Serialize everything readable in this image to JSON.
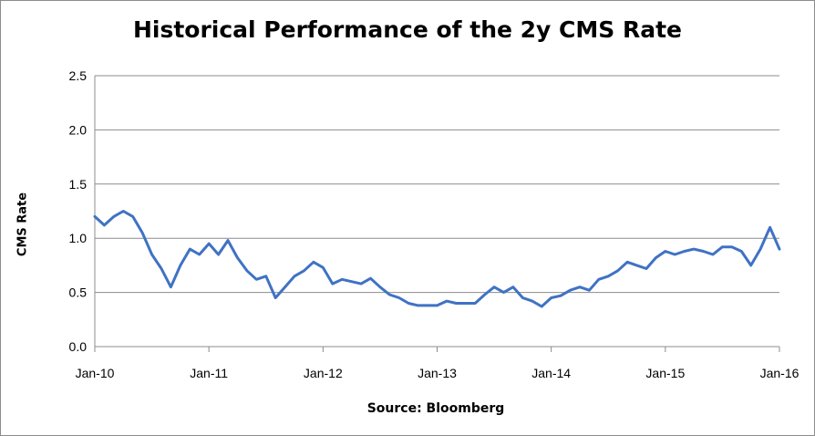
{
  "chart_data": {
    "type": "line",
    "title": "Historical Performance of the 2y CMS Rate",
    "xlabel": "Source: Bloomberg",
    "ylabel": "CMS Rate",
    "ylim": [
      0,
      2.5
    ],
    "yticks": [
      "0.0",
      "0.5",
      "1.0",
      "1.5",
      "2.0",
      "2.5"
    ],
    "xlim": [
      "2010-01",
      "2016-01"
    ],
    "xticks": [
      "Jan-10",
      "Jan-11",
      "Jan-12",
      "Jan-13",
      "Jan-14",
      "Jan-15",
      "Jan-16"
    ],
    "grid": true,
    "legend": "none",
    "series": [
      {
        "color": "#3f72c4",
        "x": [
          "2010-01",
          "2010-02",
          "2010-03",
          "2010-04",
          "2010-05",
          "2010-06",
          "2010-07",
          "2010-08",
          "2010-09",
          "2010-10",
          "2010-11",
          "2010-12",
          "2011-01",
          "2011-02",
          "2011-03",
          "2011-04",
          "2011-05",
          "2011-06",
          "2011-07",
          "2011-08",
          "2011-09",
          "2011-10",
          "2011-11",
          "2011-12",
          "2012-01",
          "2012-02",
          "2012-03",
          "2012-04",
          "2012-05",
          "2012-06",
          "2012-07",
          "2012-08",
          "2012-09",
          "2012-10",
          "2012-11",
          "2012-12",
          "2013-01",
          "2013-02",
          "2013-03",
          "2013-04",
          "2013-05",
          "2013-06",
          "2013-07",
          "2013-08",
          "2013-09",
          "2013-10",
          "2013-11",
          "2013-12",
          "2014-01",
          "2014-02",
          "2014-03",
          "2014-04",
          "2014-05",
          "2014-06",
          "2014-07",
          "2014-08",
          "2014-09",
          "2014-10",
          "2014-11",
          "2014-12",
          "2015-01",
          "2015-02",
          "2015-03",
          "2015-04",
          "2015-05",
          "2015-06",
          "2015-07",
          "2015-08",
          "2015-09",
          "2015-10",
          "2015-11",
          "2015-12",
          "2016-01"
        ],
        "values": [
          1.2,
          1.12,
          1.2,
          1.25,
          1.2,
          1.05,
          0.85,
          0.72,
          0.55,
          0.75,
          0.9,
          0.85,
          0.95,
          0.85,
          0.98,
          0.82,
          0.7,
          0.62,
          0.65,
          0.45,
          0.55,
          0.65,
          0.7,
          0.78,
          0.73,
          0.58,
          0.62,
          0.6,
          0.58,
          0.63,
          0.55,
          0.48,
          0.45,
          0.4,
          0.38,
          0.38,
          0.38,
          0.42,
          0.4,
          0.4,
          0.4,
          0.48,
          0.55,
          0.5,
          0.55,
          0.45,
          0.42,
          0.37,
          0.45,
          0.47,
          0.52,
          0.55,
          0.52,
          0.62,
          0.65,
          0.7,
          0.78,
          0.75,
          0.72,
          0.82,
          0.88,
          0.85,
          0.88,
          0.9,
          0.88,
          0.85,
          0.92,
          0.92,
          0.88,
          0.75,
          0.9,
          1.1,
          0.9
        ]
      }
    ]
  }
}
